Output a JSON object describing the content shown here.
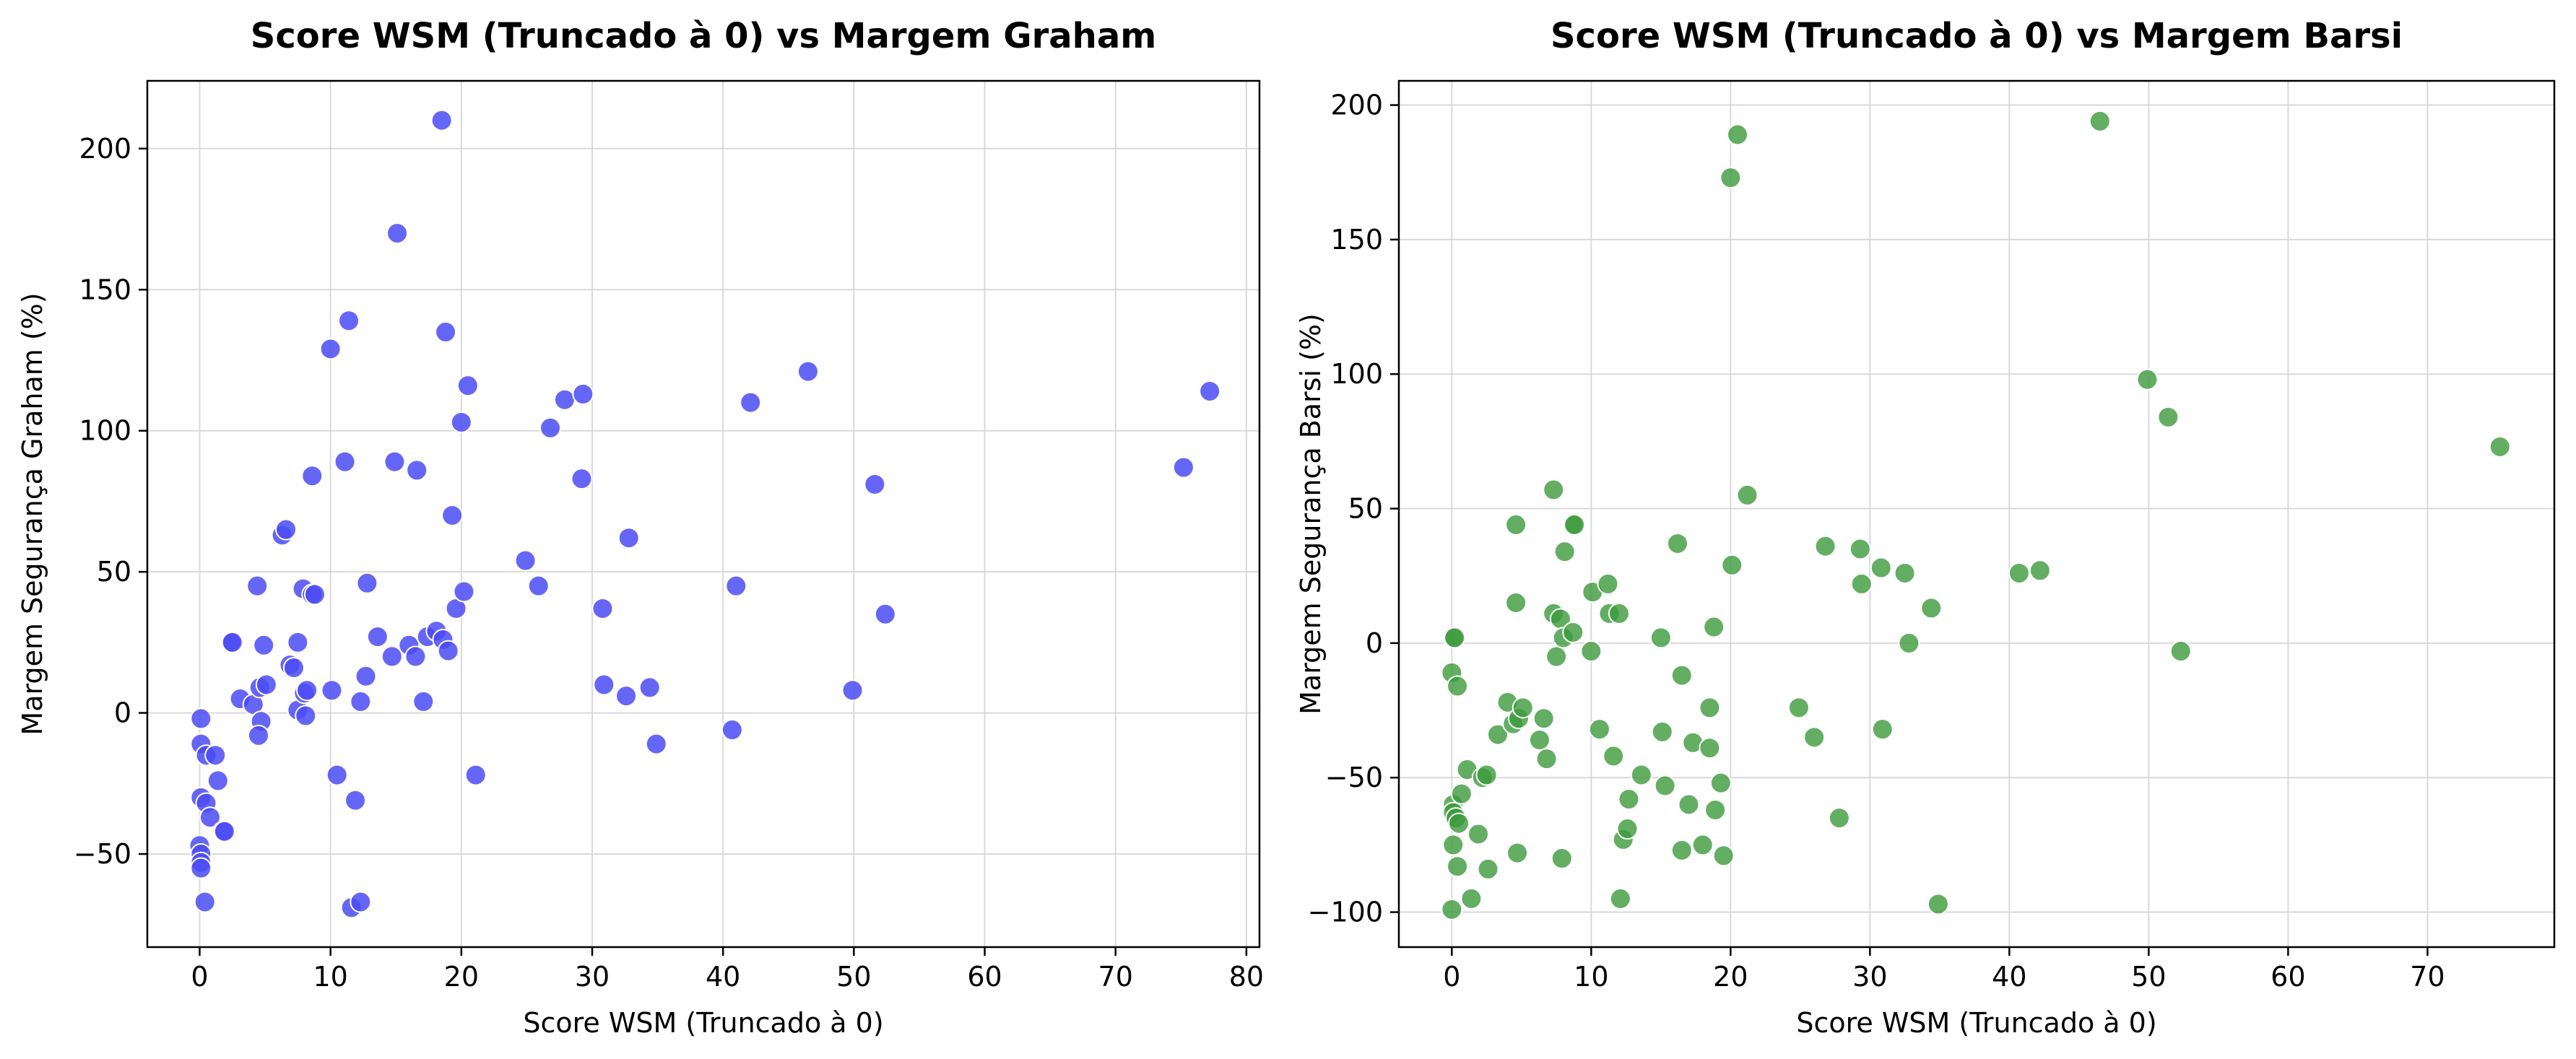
{
  "chart_data": [
    {
      "type": "scatter",
      "title": "Score WSM (Truncado à 0) vs Margem Graham",
      "xlabel": "Score WSM (Truncado à 0)",
      "ylabel": "Margem Segurança Graham (%)",
      "xlim": [
        -4,
        81
      ],
      "ylim": [
        -83,
        224
      ],
      "xticks": [
        0,
        10,
        20,
        30,
        40,
        50,
        60,
        70,
        80
      ],
      "yticks": [
        -50,
        0,
        50,
        100,
        150,
        200
      ],
      "grid": true,
      "legend": "none",
      "point_color": "#4b4bf5",
      "point_alpha": 0.85,
      "points": [
        [
          0.1,
          -2
        ],
        [
          0.1,
          -11
        ],
        [
          0.5,
          -15
        ],
        [
          1.2,
          -15
        ],
        [
          0.1,
          -30
        ],
        [
          0.5,
          -32
        ],
        [
          0.8,
          -37
        ],
        [
          1.4,
          -24
        ],
        [
          0.0,
          -47
        ],
        [
          0.1,
          -50
        ],
        [
          0.1,
          -53
        ],
        [
          0.1,
          -55
        ],
        [
          0.4,
          -67
        ],
        [
          1.8,
          -42
        ],
        [
          1.9,
          -42
        ],
        [
          2.4,
          25
        ],
        [
          2.5,
          25
        ],
        [
          3.1,
          5
        ],
        [
          4.1,
          3
        ],
        [
          4.4,
          45
        ],
        [
          4.6,
          9
        ],
        [
          4.7,
          -3
        ],
        [
          4.9,
          24
        ],
        [
          4.5,
          -8
        ],
        [
          5.1,
          10
        ],
        [
          6.3,
          63
        ],
        [
          6.6,
          65
        ],
        [
          6.9,
          17
        ],
        [
          7.2,
          16
        ],
        [
          7.5,
          25
        ],
        [
          7.5,
          1
        ],
        [
          7.9,
          44
        ],
        [
          8.0,
          7
        ],
        [
          8.1,
          -1
        ],
        [
          8.2,
          8
        ],
        [
          8.6,
          42
        ],
        [
          8.8,
          42
        ],
        [
          8.6,
          84
        ],
        [
          10.0,
          129
        ],
        [
          10.1,
          8
        ],
        [
          10.5,
          -22
        ],
        [
          11.1,
          89
        ],
        [
          11.4,
          139
        ],
        [
          11.6,
          -69
        ],
        [
          11.9,
          -31
        ],
        [
          12.3,
          -67
        ],
        [
          12.3,
          4
        ],
        [
          12.7,
          13
        ],
        [
          12.8,
          46
        ],
        [
          13.6,
          27
        ],
        [
          14.7,
          20
        ],
        [
          14.9,
          89
        ],
        [
          15.1,
          170
        ],
        [
          16.0,
          24
        ],
        [
          16.5,
          20
        ],
        [
          16.6,
          86
        ],
        [
          17.1,
          4
        ],
        [
          17.4,
          27
        ],
        [
          18.1,
          29
        ],
        [
          18.5,
          210
        ],
        [
          18.6,
          26
        ],
        [
          18.8,
          135
        ],
        [
          19.0,
          22
        ],
        [
          19.3,
          70
        ],
        [
          19.6,
          37
        ],
        [
          20.0,
          103
        ],
        [
          20.2,
          43
        ],
        [
          20.5,
          116
        ],
        [
          21.1,
          -22
        ],
        [
          24.9,
          54
        ],
        [
          25.9,
          45
        ],
        [
          26.8,
          101
        ],
        [
          27.9,
          111
        ],
        [
          29.3,
          113
        ],
        [
          29.2,
          83
        ],
        [
          30.8,
          37
        ],
        [
          30.9,
          10
        ],
        [
          32.6,
          6
        ],
        [
          32.8,
          62
        ],
        [
          34.4,
          9
        ],
        [
          34.9,
          -11
        ],
        [
          40.7,
          -6
        ],
        [
          41.0,
          45
        ],
        [
          42.1,
          110
        ],
        [
          46.5,
          121
        ],
        [
          49.9,
          8
        ],
        [
          51.6,
          81
        ],
        [
          52.4,
          35
        ],
        [
          75.2,
          87
        ],
        [
          77.2,
          114
        ]
      ]
    },
    {
      "type": "scatter",
      "title": "Score WSM (Truncado à 0) vs Margem Barsi",
      "xlabel": "Score WSM (Truncado à 0)",
      "ylabel": "Margem Segurança Barsi (%)",
      "xlim": [
        -3.8,
        79.1
      ],
      "ylim": [
        -113,
        209
      ],
      "xticks": [
        0,
        10,
        20,
        30,
        40,
        50,
        60,
        70
      ],
      "yticks": [
        -100,
        -50,
        0,
        50,
        100,
        150,
        200
      ],
      "grid": true,
      "legend": "none",
      "point_color": "#3c9a3c",
      "point_alpha": 0.8,
      "points": [
        [
          0.1,
          2
        ],
        [
          0.2,
          2
        ],
        [
          0.0,
          -11
        ],
        [
          0.4,
          -16
        ],
        [
          0.1,
          -60
        ],
        [
          0.1,
          -63
        ],
        [
          0.3,
          -65
        ],
        [
          0.5,
          -67
        ],
        [
          0.1,
          -75
        ],
        [
          0.4,
          -83
        ],
        [
          0.0,
          -99
        ],
        [
          0.7,
          -56
        ],
        [
          1.1,
          -47
        ],
        [
          1.4,
          -95
        ],
        [
          1.9,
          -71
        ],
        [
          2.2,
          -50
        ],
        [
          2.5,
          -49
        ],
        [
          2.6,
          -84
        ],
        [
          3.3,
          -34
        ],
        [
          4.0,
          -22
        ],
        [
          4.4,
          -30
        ],
        [
          4.6,
          44
        ],
        [
          4.6,
          15
        ],
        [
          4.7,
          -78
        ],
        [
          4.8,
          -28
        ],
        [
          5.1,
          -24
        ],
        [
          6.3,
          -36
        ],
        [
          6.6,
          -28
        ],
        [
          6.8,
          -43
        ],
        [
          7.3,
          57
        ],
        [
          7.3,
          11
        ],
        [
          7.5,
          -5
        ],
        [
          7.8,
          9
        ],
        [
          7.9,
          -80
        ],
        [
          8.0,
          2
        ],
        [
          8.1,
          34
        ],
        [
          8.7,
          4
        ],
        [
          8.7,
          44
        ],
        [
          8.8,
          44
        ],
        [
          10.0,
          -3
        ],
        [
          10.1,
          19
        ],
        [
          10.6,
          -32
        ],
        [
          11.2,
          22
        ],
        [
          11.3,
          11
        ],
        [
          11.6,
          -42
        ],
        [
          12.0,
          11
        ],
        [
          12.1,
          -95
        ],
        [
          12.3,
          -73
        ],
        [
          12.6,
          -69
        ],
        [
          12.7,
          -58
        ],
        [
          13.6,
          -49
        ],
        [
          15.0,
          2
        ],
        [
          15.1,
          -33
        ],
        [
          15.3,
          -53
        ],
        [
          16.2,
          37
        ],
        [
          16.5,
          -12
        ],
        [
          16.5,
          -77
        ],
        [
          17.0,
          -60
        ],
        [
          17.3,
          -37
        ],
        [
          18.0,
          -75
        ],
        [
          18.5,
          -24
        ],
        [
          18.5,
          -39
        ],
        [
          18.8,
          6
        ],
        [
          18.9,
          -62
        ],
        [
          19.3,
          -52
        ],
        [
          19.5,
          -79
        ],
        [
          20.0,
          173
        ],
        [
          20.1,
          29
        ],
        [
          20.5,
          189
        ],
        [
          21.2,
          55
        ],
        [
          24.9,
          -24
        ],
        [
          26.0,
          -35
        ],
        [
          26.8,
          36
        ],
        [
          27.8,
          -65
        ],
        [
          29.3,
          35
        ],
        [
          29.4,
          22
        ],
        [
          30.8,
          28
        ],
        [
          30.9,
          -32
        ],
        [
          32.5,
          26
        ],
        [
          32.8,
          0
        ],
        [
          34.4,
          13
        ],
        [
          34.9,
          -97
        ],
        [
          40.7,
          26
        ],
        [
          42.2,
          27
        ],
        [
          46.5,
          194
        ],
        [
          49.9,
          98
        ],
        [
          51.4,
          84
        ],
        [
          52.3,
          -3
        ],
        [
          75.2,
          73
        ]
      ]
    }
  ]
}
